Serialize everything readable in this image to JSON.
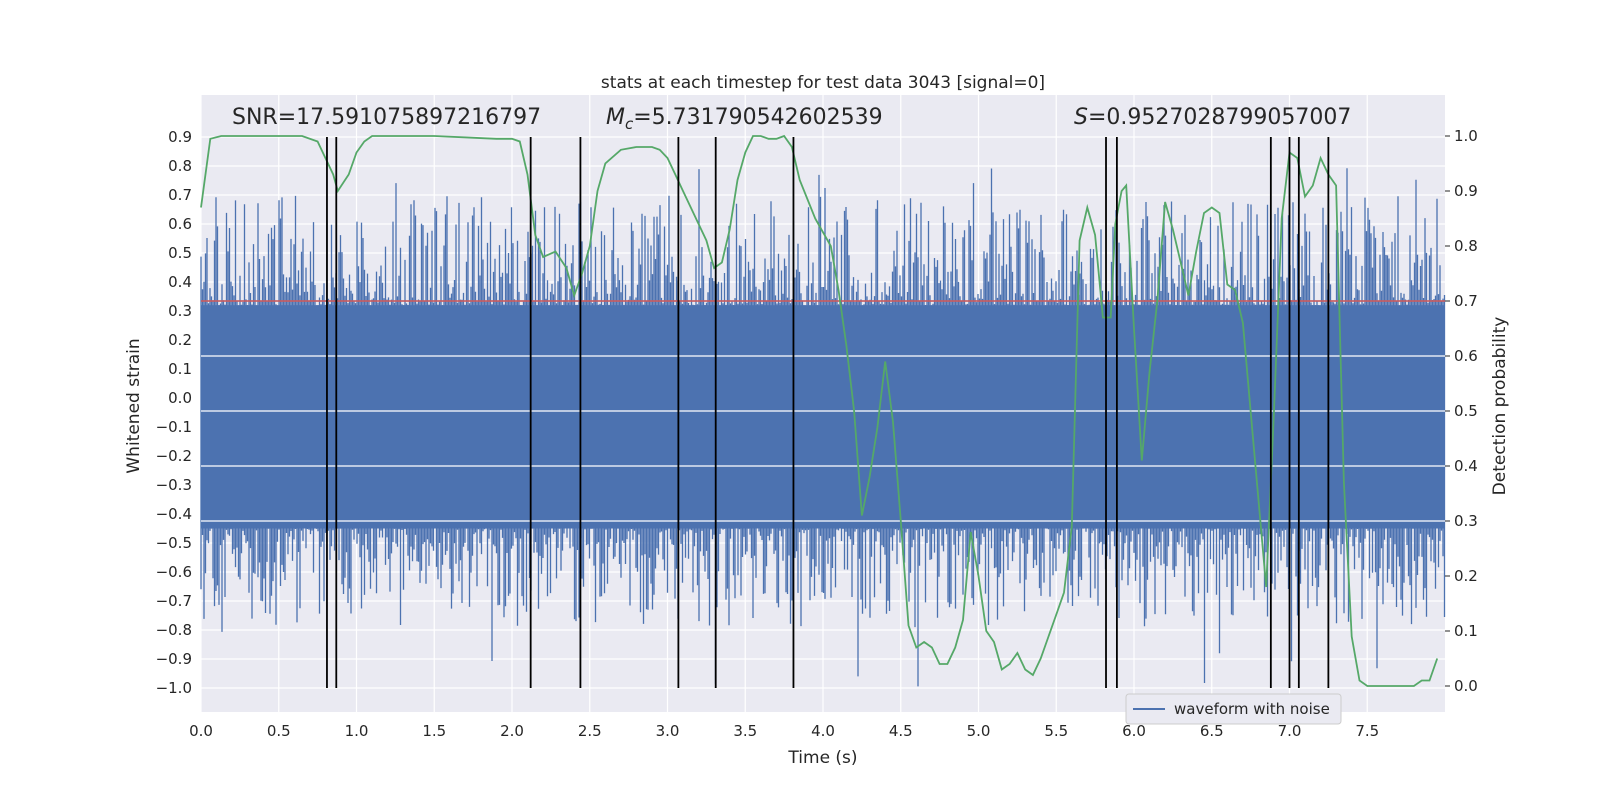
{
  "chart_data": {
    "type": "line",
    "title": "stats at each timestep for test data 3043 [signal=0]",
    "xlabel": "Time (s)",
    "ylabel": "Whitened strain",
    "y2label": "Detection probability",
    "xlim": [
      0,
      8.0
    ],
    "ylim": [
      -1.05,
      0.97
    ],
    "y2lim": [
      -0.05,
      1.045
    ],
    "x_ticks": [
      0.0,
      0.5,
      1.0,
      1.5,
      2.0,
      2.5,
      3.0,
      3.5,
      4.0,
      4.5,
      5.0,
      5.5,
      6.0,
      6.5,
      7.0,
      7.5
    ],
    "x_tick_labels": [
      "0.0",
      "0.5",
      "1.0",
      "1.5",
      "2.0",
      "2.5",
      "3.0",
      "3.5",
      "4.0",
      "4.5",
      "5.0",
      "5.5",
      "6.0",
      "6.5",
      "7.0",
      "7.5"
    ],
    "y_ticks": [
      0.9,
      0.8,
      0.7,
      0.6,
      0.5,
      0.4,
      0.3,
      0.2,
      0.1,
      0.0,
      -0.1,
      -0.2,
      -0.3,
      -0.4,
      -0.5,
      -0.6,
      -0.7,
      -0.8,
      -0.9,
      -1.0
    ],
    "y_tick_labels": [
      "0.9",
      "0.8",
      "0.7",
      "0.6",
      "0.5",
      "0.4",
      "0.3",
      "0.2",
      "0.1",
      "0.0",
      "−0.1",
      "−0.2",
      "−0.3",
      "−0.4",
      "−0.5",
      "−0.6",
      "−0.7",
      "−0.8",
      "−0.9",
      "−1.0"
    ],
    "y2_ticks": [
      1.0,
      0.9,
      0.8,
      0.7,
      0.6,
      0.5,
      0.4,
      0.3,
      0.2,
      0.1,
      0.0
    ],
    "y2_tick_labels": [
      "1.0",
      "0.9",
      "0.8",
      "0.7",
      "0.6",
      "0.5",
      "0.4",
      "0.3",
      "0.2",
      "0.1",
      "0.0"
    ],
    "grid": true,
    "legend": {
      "position": "lower-right",
      "entries": [
        {
          "name": "waveform with noise",
          "color": "#4c72b0"
        }
      ]
    },
    "annotations": {
      "snr": "SNR=17.591075897216797",
      "mc_symbol": "M",
      "mc_subscript": "c",
      "mc_value": "=5.731790542602539",
      "s_symbol": "S",
      "s_value": "=0.9527028799057007"
    },
    "series": [
      {
        "name": "waveform with noise",
        "color": "#4c72b0",
        "kind": "noise-band",
        "dense_band": [
          -0.45,
          0.32
        ],
        "peak_max": 0.8,
        "peak_min": -1.0
      },
      {
        "name": "detection probability",
        "axis": "right",
        "color": "#55a868",
        "x": [
          0.0,
          0.06,
          0.13,
          0.2,
          0.5,
          0.65,
          0.75,
          0.8,
          0.85,
          0.88,
          0.95,
          1.0,
          1.05,
          1.1,
          1.5,
          1.9,
          2.0,
          2.05,
          2.1,
          2.15,
          2.2,
          2.28,
          2.35,
          2.4,
          2.45,
          2.5,
          2.55,
          2.6,
          2.7,
          2.8,
          2.9,
          2.95,
          3.0,
          3.05,
          3.1,
          3.15,
          3.2,
          3.25,
          3.3,
          3.35,
          3.4,
          3.45,
          3.5,
          3.55,
          3.6,
          3.65,
          3.7,
          3.75,
          3.8,
          3.85,
          3.95,
          4.05,
          4.1,
          4.15,
          4.2,
          4.25,
          4.3,
          4.35,
          4.4,
          4.45,
          4.5,
          4.55,
          4.6,
          4.65,
          4.7,
          4.75,
          4.8,
          4.85,
          4.9,
          4.95,
          5.0,
          5.05,
          5.1,
          5.15,
          5.2,
          5.25,
          5.3,
          5.35,
          5.4,
          5.45,
          5.5,
          5.55,
          5.6,
          5.65,
          5.7,
          5.75,
          5.8,
          5.85,
          5.88,
          5.92,
          5.95,
          6.0,
          6.05,
          6.1,
          6.15,
          6.2,
          6.25,
          6.3,
          6.35,
          6.4,
          6.45,
          6.5,
          6.55,
          6.6,
          6.65,
          6.7,
          6.75,
          6.8,
          6.85,
          6.9,
          6.95,
          7.0,
          7.05,
          7.1,
          7.15,
          7.2,
          7.25,
          7.3,
          7.35,
          7.4,
          7.45,
          7.5,
          7.55,
          7.6,
          7.7,
          7.8,
          7.85,
          7.9,
          7.95
        ],
        "values": [
          0.87,
          0.995,
          1.0,
          1.0,
          1.0,
          1.0,
          0.99,
          0.96,
          0.93,
          0.9,
          0.93,
          0.97,
          0.99,
          1.0,
          1.0,
          0.995,
          0.995,
          0.99,
          0.93,
          0.82,
          0.78,
          0.79,
          0.76,
          0.71,
          0.75,
          0.8,
          0.9,
          0.95,
          0.975,
          0.98,
          0.98,
          0.975,
          0.96,
          0.93,
          0.9,
          0.87,
          0.84,
          0.81,
          0.76,
          0.77,
          0.83,
          0.92,
          0.97,
          1.0,
          1.0,
          0.995,
          0.995,
          1.0,
          0.98,
          0.92,
          0.85,
          0.8,
          0.72,
          0.62,
          0.5,
          0.31,
          0.38,
          0.47,
          0.59,
          0.48,
          0.3,
          0.11,
          0.07,
          0.08,
          0.07,
          0.04,
          0.04,
          0.07,
          0.12,
          0.28,
          0.2,
          0.1,
          0.08,
          0.03,
          0.04,
          0.06,
          0.03,
          0.02,
          0.05,
          0.09,
          0.13,
          0.17,
          0.29,
          0.81,
          0.87,
          0.82,
          0.67,
          0.67,
          0.84,
          0.9,
          0.91,
          0.65,
          0.41,
          0.57,
          0.7,
          0.88,
          0.83,
          0.77,
          0.71,
          0.79,
          0.86,
          0.87,
          0.86,
          0.73,
          0.72,
          0.66,
          0.5,
          0.34,
          0.18,
          0.5,
          0.85,
          0.97,
          0.96,
          0.89,
          0.91,
          0.96,
          0.93,
          0.91,
          0.37,
          0.09,
          0.01,
          0.0,
          0.0,
          0.0,
          0.0,
          0.0,
          0.01,
          0.01,
          0.05
        ]
      }
    ],
    "threshold": {
      "value": 0.7,
      "color": "#c44e52"
    },
    "vertical_markers": [
      0.81,
      0.87,
      2.12,
      2.44,
      3.07,
      3.31,
      3.81,
      5.82,
      5.89,
      6.88,
      7.0,
      7.06,
      7.25
    ]
  }
}
